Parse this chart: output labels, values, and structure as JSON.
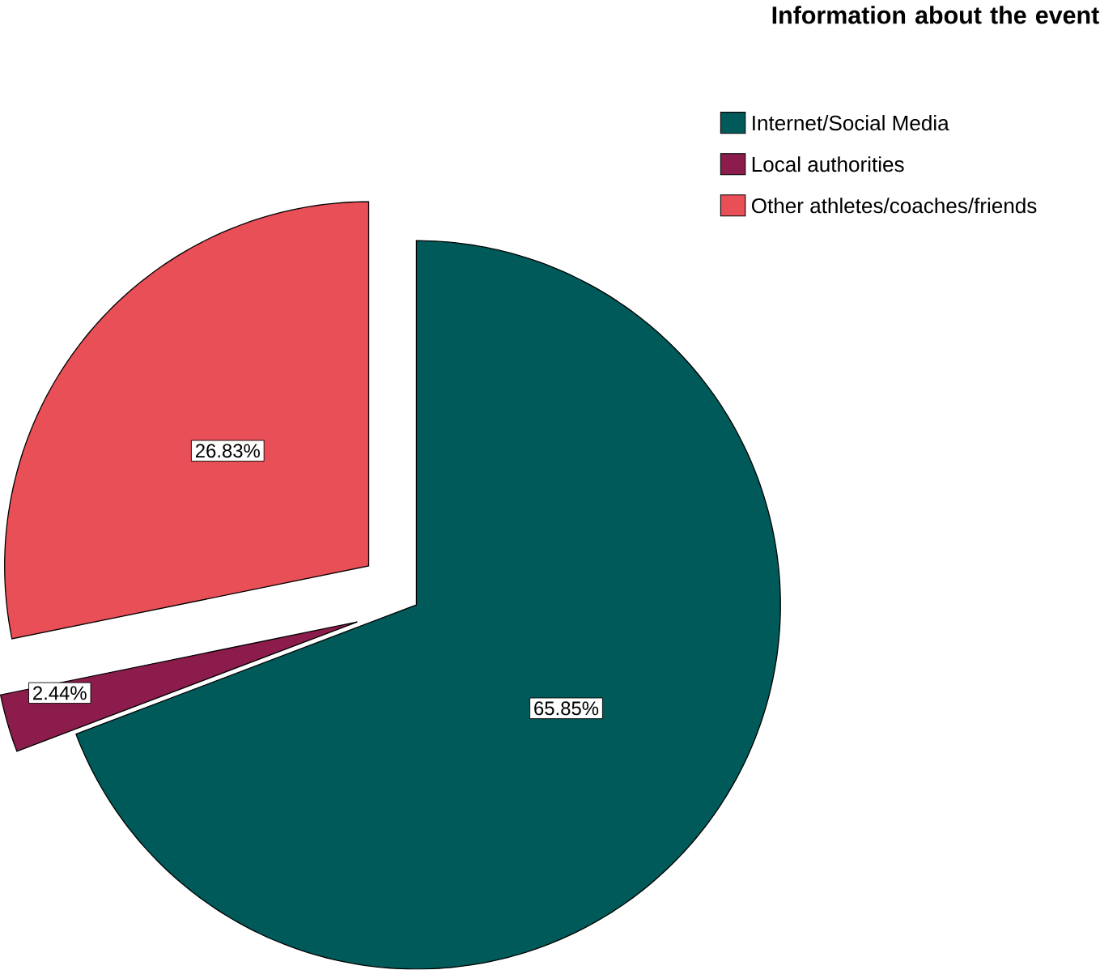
{
  "chart_data": {
    "type": "pie",
    "legend_title": "Information about the event",
    "legend": "top right",
    "categories": [
      "Internet/Social Media",
      "Local authorities",
      "Other athletes/coaches/friends"
    ],
    "values": [
      65.85,
      2.44,
      26.83
    ],
    "colors": [
      "#005a5a",
      "#8c1c4c",
      "#e84f57"
    ],
    "value_labels": [
      "65.85%",
      "2.44%",
      "26.83%"
    ]
  }
}
